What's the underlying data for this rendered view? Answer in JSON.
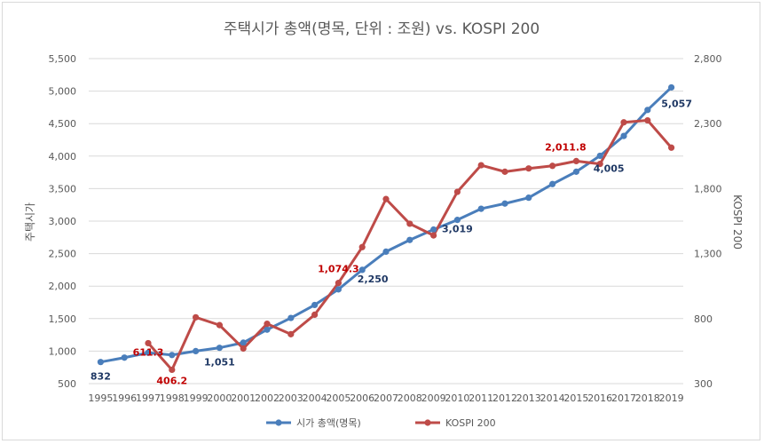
{
  "chart_data": {
    "type": "line",
    "title": "주택시가 총액(명목, 단위 : 조원) vs. KOSPI 200",
    "ylabel_left": "주택시가",
    "ylabel_right": "KOSPI 200",
    "categories": [
      "1995",
      "1996",
      "1997",
      "1998",
      "1999",
      "2000",
      "2001",
      "2002",
      "2003",
      "2004",
      "2005",
      "2006",
      "2007",
      "2008",
      "2009",
      "2010",
      "2011",
      "2012",
      "2013",
      "2014",
      "2015",
      "2016",
      "2017",
      "2018",
      "2019"
    ],
    "ylim_left": [
      500,
      5500
    ],
    "yticks_left": [
      "500",
      "1,000",
      "1,500",
      "2,000",
      "2,500",
      "3,000",
      "3,500",
      "4,000",
      "4,500",
      "5,000",
      "5,500"
    ],
    "ylim_right": [
      300,
      2800
    ],
    "yticks_right": [
      "300",
      "800",
      "1,300",
      "1,800",
      "2,300",
      "2,800"
    ],
    "grid": true,
    "legend_position": "bottom",
    "series": [
      {
        "name": "시가 총액(명목)",
        "axis": "left",
        "color": "#4a7ebb",
        "values": [
          832,
          900,
          975,
          940,
          1000,
          1051,
          1130,
          1330,
          1510,
          1710,
          1950,
          2250,
          2530,
          2710,
          2870,
          3019,
          3190,
          3270,
          3360,
          3570,
          3760,
          4005,
          4310,
          4710,
          5057
        ]
      },
      {
        "name": "KOSPI 200",
        "axis": "right",
        "color": "#be4b48",
        "values": [
          null,
          null,
          611.3,
          406.2,
          810,
          750,
          570,
          760,
          680,
          830,
          1074.3,
          1350,
          1720,
          1530,
          1440,
          1775,
          1980,
          1930,
          1955,
          1975,
          2011.8,
          1990,
          2310,
          2325,
          2115
        ]
      }
    ],
    "data_labels": [
      {
        "series": 0,
        "index": 0,
        "text": "832"
      },
      {
        "series": 0,
        "index": 5,
        "text": "1,051"
      },
      {
        "series": 0,
        "index": 11,
        "text": "2,250"
      },
      {
        "series": 0,
        "index": 15,
        "text": "3,019"
      },
      {
        "series": 0,
        "index": 21,
        "text": "4,005"
      },
      {
        "series": 0,
        "index": 24,
        "text": "5,057"
      },
      {
        "series": 1,
        "index": 2,
        "text": "611.3"
      },
      {
        "series": 1,
        "index": 3,
        "text": "406.2"
      },
      {
        "series": 1,
        "index": 10,
        "text": "1,074.3"
      },
      {
        "series": 1,
        "index": 20,
        "text": "2,011.8"
      }
    ],
    "label_colors": [
      "#1f3864",
      "#c00000"
    ]
  }
}
